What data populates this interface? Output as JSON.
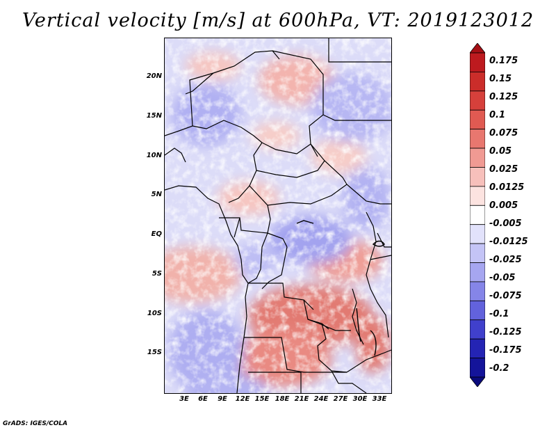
{
  "title": "Vertical velocity [m/s] at 600hPa, VT: 2019123012",
  "map": {
    "lat_labels": [
      "20N",
      "15N",
      "10N",
      "5N",
      "EQ",
      "5S",
      "10S",
      "15S"
    ],
    "lon_labels": [
      "3E",
      "6E",
      "9E",
      "12E",
      "15E",
      "18E",
      "21E",
      "24E",
      "27E",
      "30E",
      "33E"
    ],
    "lat_values": [
      20,
      15,
      10,
      5,
      0,
      -5,
      -10,
      -15
    ],
    "lon_values": [
      3,
      6,
      9,
      12,
      15,
      18,
      21,
      24,
      27,
      30,
      33
    ],
    "lon_range": [
      0,
      34
    ],
    "lat_range": [
      -20,
      24.5
    ]
  },
  "colorbar": {
    "labels": [
      "0.175",
      "0.15",
      "0.125",
      "0.1",
      "0.075",
      "0.05",
      "0.025",
      "0.0125",
      "0.005",
      "-0.005",
      "-0.0125",
      "-0.025",
      "-0.05",
      "-0.075",
      "-0.1",
      "-0.125",
      "-0.175",
      "-0.2"
    ],
    "colors": [
      "#a50f15",
      "#bd1a1f",
      "#cb2d2a",
      "#d6403b",
      "#e05a52",
      "#e8776f",
      "#f09a93",
      "#f7c0bb",
      "#fce3e0",
      "#ffffff",
      "#e2e2fb",
      "#c4c4f6",
      "#a6a6f0",
      "#8585e8",
      "#6262dc",
      "#4040cc",
      "#2424b4",
      "#14149a",
      "#0a0a7c"
    ]
  },
  "footer": "GrADS: IGES/COLA"
}
